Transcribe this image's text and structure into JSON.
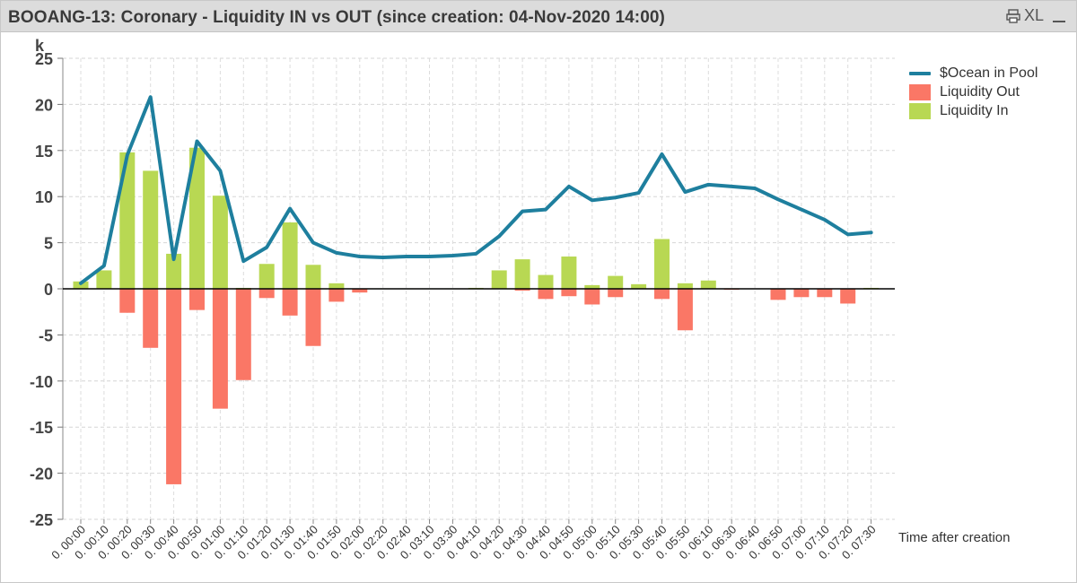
{
  "window": {
    "title": "BOOANG-13: Coronary - Liquidity IN vs OUT (since creation: 04-Nov-2020 14:00)",
    "export_label": "XL",
    "icons": {
      "print": "print-icon",
      "minimize": "minimize-icon"
    }
  },
  "chart_data": {
    "type": "bar",
    "title": "BOOANG-13: Coronary - Liquidity IN vs OUT (since creation: 04-Nov-2020 14:00)",
    "xlabel": "Time after creation",
    "ylabel": "",
    "y_unit": "k",
    "ylim": [
      -25,
      25
    ],
    "yticks": [
      25,
      20,
      15,
      10,
      5,
      0,
      -5,
      -10,
      -15,
      -20,
      -25
    ],
    "grid": true,
    "legend_position": "top-right",
    "categories": [
      "0. 00:00",
      "0. 00:10",
      "0. 00:20",
      "0. 00:30",
      "0. 00:40",
      "0. 00:50",
      "0. 01:00",
      "0. 01:10",
      "0. 01:20",
      "0. 01:30",
      "0. 01:40",
      "0. 01:50",
      "0. 02:00",
      "0. 02:20",
      "0. 02:40",
      "0. 03:10",
      "0. 03:30",
      "0. 04:10",
      "0. 04:20",
      "0. 04:30",
      "0. 04:40",
      "0. 04:50",
      "0. 05:00",
      "0. 05:10",
      "0. 05:30",
      "0. 05:40",
      "0. 05:50",
      "0. 06:10",
      "0. 06:30",
      "0. 06:40",
      "0. 06:50",
      "0. 07:00",
      "0. 07:10",
      "0. 07:20",
      "0. 07:30"
    ],
    "series": [
      {
        "name": "$Ocean in Pool",
        "kind": "line",
        "color": "#1e7f9e",
        "values": [
          0.6,
          2.5,
          14.5,
          20.8,
          3.2,
          16.0,
          12.8,
          3.0,
          4.5,
          8.7,
          5.0,
          3.9,
          3.5,
          3.4,
          3.5,
          3.5,
          3.6,
          3.8,
          5.7,
          8.4,
          8.6,
          11.1,
          9.6,
          9.9,
          10.4,
          14.6,
          10.5,
          11.3,
          11.1,
          10.9,
          9.7,
          8.6,
          7.5,
          5.9,
          6.1
        ]
      },
      {
        "name": "Liquidity Out",
        "kind": "bar",
        "color": "#fa7766",
        "values": [
          0,
          0,
          -2.6,
          -6.4,
          -21.2,
          -2.3,
          -13.0,
          -9.9,
          -1.0,
          -2.9,
          -6.2,
          -1.4,
          -0.4,
          0,
          0,
          0,
          0,
          0,
          0,
          -0.2,
          -1.1,
          -0.8,
          -1.7,
          -0.9,
          0,
          -1.1,
          -4.5,
          0,
          -0.1,
          0,
          -1.2,
          -0.9,
          -0.9,
          -1.6,
          0
        ]
      },
      {
        "name": "Liquidity In",
        "kind": "bar",
        "color": "#b8d853",
        "values": [
          0.8,
          2.0,
          14.8,
          12.8,
          3.8,
          15.3,
          10.1,
          0.1,
          2.7,
          7.2,
          2.6,
          0.6,
          0,
          0.05,
          0.05,
          0.05,
          0.05,
          0.1,
          2.0,
          3.2,
          1.5,
          3.5,
          0.4,
          1.4,
          0.5,
          5.4,
          0.6,
          0.9,
          0.05,
          0,
          0,
          0,
          0,
          0,
          0.1
        ]
      }
    ]
  }
}
